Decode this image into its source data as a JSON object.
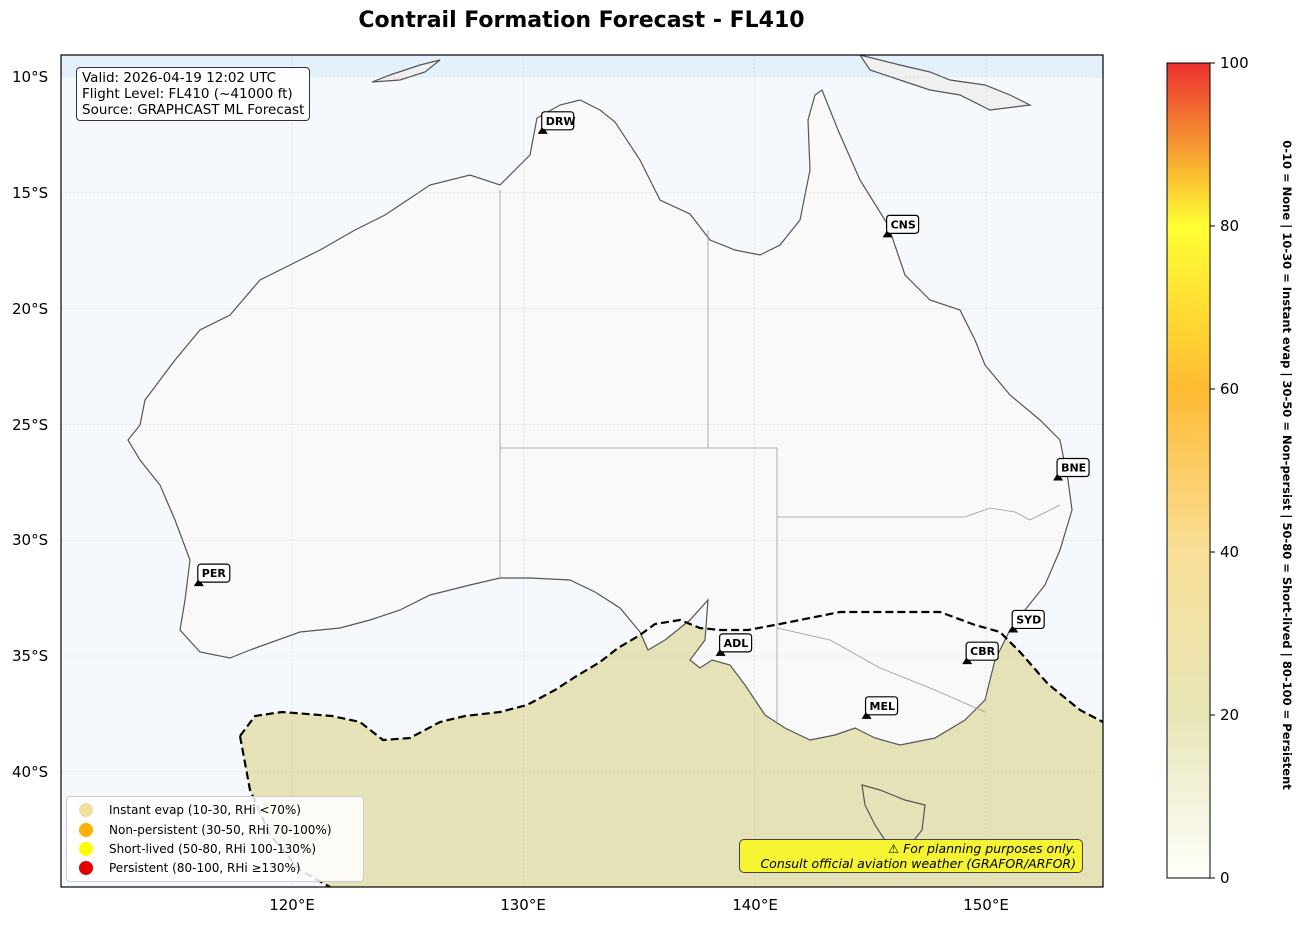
{
  "title": "Contrail Formation Forecast - FL410",
  "info": {
    "valid": "Valid: 2026-04-19 12:02 UTC",
    "flight_level": "Flight Level: FL410 (~41000 ft)",
    "source": "Source: GRAPHCAST ML Forecast"
  },
  "axes": {
    "lat_ticks": [
      "10°S",
      "15°S",
      "20°S",
      "25°S",
      "30°S",
      "35°S",
      "40°S"
    ],
    "lon_ticks": [
      "120°E",
      "130°E",
      "140°E",
      "150°E"
    ]
  },
  "airports": [
    {
      "code": "DRW",
      "lon": 130.84,
      "lat": -12.41
    },
    {
      "code": "CNS",
      "lon": 145.75,
      "lat": -16.88
    },
    {
      "code": "BNE",
      "lon": 153.12,
      "lat": -27.38
    },
    {
      "code": "PER",
      "lon": 115.97,
      "lat": -31.94
    },
    {
      "code": "SYD",
      "lon": 151.18,
      "lat": -33.94
    },
    {
      "code": "ADL",
      "lon": 138.53,
      "lat": -34.95
    },
    {
      "code": "CBR",
      "lon": 149.19,
      "lat": -35.31
    },
    {
      "code": "MEL",
      "lon": 144.84,
      "lat": -37.67
    }
  ],
  "legend": [
    {
      "label": "Instant evap (10-30, RHi <70%)",
      "color": "#f0e0a0"
    },
    {
      "label": "Non-persistent (30-50, RHi 70-100%)",
      "color": "#ffb000"
    },
    {
      "label": "Short-lived (50-80, RHi 100-130%)",
      "color": "#ffff00"
    },
    {
      "label": "Persistent (80-100, RHi ≥130%)",
      "color": "#e00000"
    }
  ],
  "disclaimer": {
    "line1": "⚠ For planning purposes only.",
    "line2": "Consult official aviation weather (GRAFOR/ARFOR)"
  },
  "colorbar": {
    "ticks": [
      "0",
      "20",
      "40",
      "60",
      "80",
      "100"
    ],
    "description": "0-10 = None  |  10-30 = Instant evap  |  30-50 = Non-persist  |  50-80 = Short-lived  |  80-100 = Persistent"
  },
  "colors": {
    "ocean": "#f5f9fd",
    "land": "#f9f9f9",
    "contrail_zone": "#e6e2b8"
  }
}
